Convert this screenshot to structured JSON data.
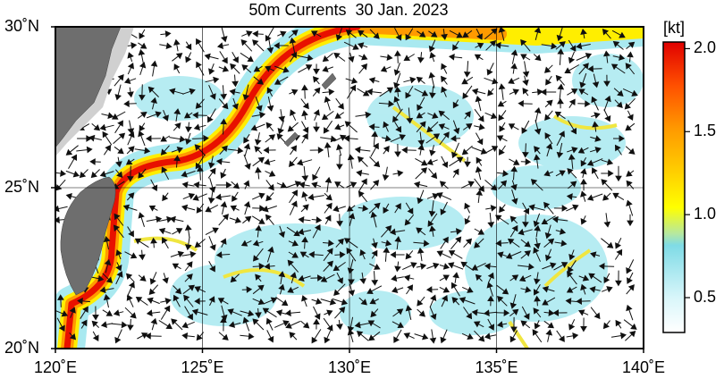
{
  "title": "50m Currents  30 Jan. 2023",
  "lon_ticks": [
    {
      "value": 120,
      "label": "120˚E"
    },
    {
      "value": 125,
      "label": "125˚E"
    },
    {
      "value": 130,
      "label": "130˚E"
    },
    {
      "value": 135,
      "label": "135˚E"
    },
    {
      "value": 140,
      "label": "140˚E"
    }
  ],
  "lat_ticks": [
    {
      "value": 20,
      "label": "20˚N"
    },
    {
      "value": 25,
      "label": "25˚N"
    },
    {
      "value": 30,
      "label": "30˚N"
    }
  ],
  "lon_range": [
    120,
    140
  ],
  "lat_range": [
    20,
    30
  ],
  "colorbar": {
    "unit": "[kt]",
    "range": [
      0.29,
      2.04
    ],
    "ticks": [
      0.5,
      {
        "value": 1,
        "label": "1.0"
      },
      1.5,
      {
        "value": 2,
        "label": "2.0"
      }
    ]
  }
}
